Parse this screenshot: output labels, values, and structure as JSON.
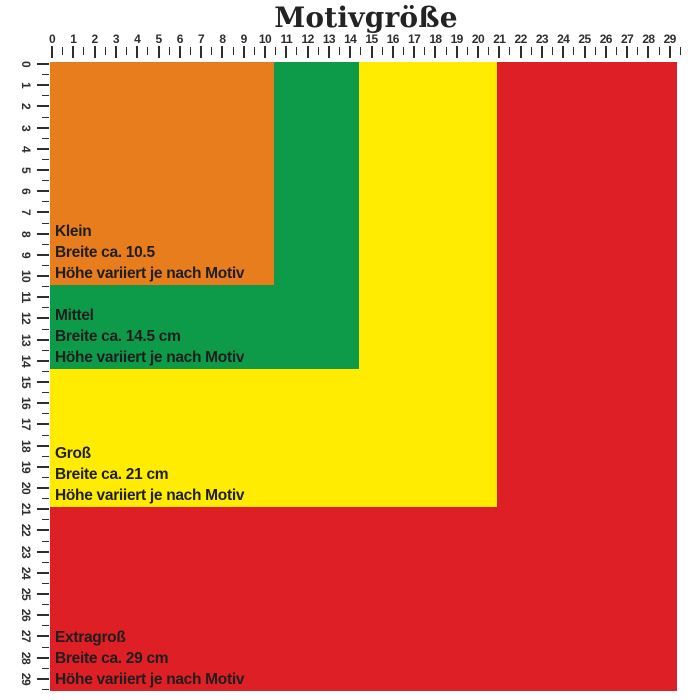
{
  "title": "Motivgröße",
  "ruler": {
    "unit_labels": [
      "0",
      "1",
      "2",
      "3",
      "4",
      "5",
      "6",
      "7",
      "8",
      "9",
      "10",
      "11",
      "12",
      "13",
      "14",
      "15",
      "16",
      "17",
      "18",
      "19",
      "20",
      "21",
      "22",
      "23",
      "24",
      "25",
      "26",
      "27",
      "28",
      "29"
    ]
  },
  "sizes": [
    {
      "name": "Klein",
      "width_label": "Breite ca. 10.5",
      "height_label": "Höhe variiert je nach Motiv",
      "width_cm": 10.5,
      "color": "#e87d1e"
    },
    {
      "name": "Mittel",
      "width_label": "Breite ca. 14.5 cm",
      "height_label": "Höhe variiert je nach Motiv",
      "width_cm": 14.5,
      "color": "#0d9b4a"
    },
    {
      "name": "Groß",
      "width_label": "Breite ca. 21 cm",
      "height_label": "Höhe variiert je nach Motiv",
      "width_cm": 21,
      "color": "#ffec00"
    },
    {
      "name": "Extragroß",
      "width_label": "Breite ca. 29 cm",
      "height_label": "Höhe variiert je nach Motiv",
      "width_cm": 29,
      "color": "#de2026"
    }
  ],
  "colors": {
    "ruler_marks": "#2e2e2e",
    "label_text": "#1e1e1e",
    "title_text": "#232323",
    "background": "#ffffff"
  }
}
